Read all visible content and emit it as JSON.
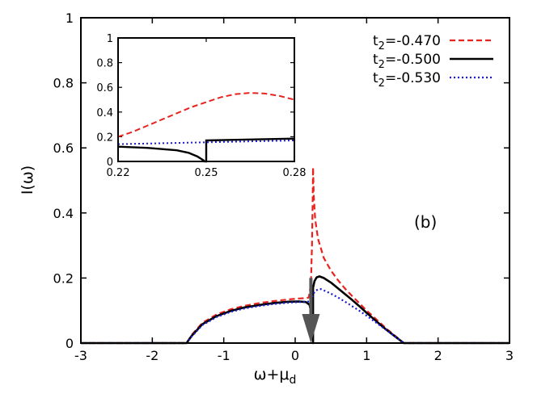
{
  "chart_data": {
    "type": "line",
    "xlabel": "ω+μ",
    "xlabel_sub": "d",
    "ylabel": "I(ω)",
    "xlim": [
      -3,
      3
    ],
    "ylim": [
      0,
      1
    ],
    "xticks": [
      "-3",
      "-2",
      "-1",
      "0",
      "1",
      "2",
      "3"
    ],
    "yticks": [
      "0",
      "0.2",
      "0.4",
      "0.6",
      "0.8",
      "1"
    ],
    "annotation": "(b)",
    "legend_position": "top-right",
    "series": [
      {
        "name": "t2=-0.470",
        "label_main": "t",
        "label_sub": "2",
        "label_rest": "=-0.470",
        "color": "#e8231f",
        "style": "dashed",
        "points": [
          [
            -1.52,
            0
          ],
          [
            -1.45,
            0.025
          ],
          [
            -1.3,
            0.062
          ],
          [
            -1.1,
            0.088
          ],
          [
            -0.9,
            0.104
          ],
          [
            -0.7,
            0.115
          ],
          [
            -0.5,
            0.123
          ],
          [
            -0.3,
            0.129
          ],
          [
            -0.1,
            0.134
          ],
          [
            0.05,
            0.137
          ],
          [
            0.15,
            0.138
          ],
          [
            0.19,
            0.14
          ],
          [
            0.22,
            0.18
          ],
          [
            0.235,
            0.3
          ],
          [
            0.245,
            0.44
          ],
          [
            0.25,
            0.54
          ],
          [
            0.26,
            0.45
          ],
          [
            0.28,
            0.38
          ],
          [
            0.32,
            0.32
          ],
          [
            0.4,
            0.262
          ],
          [
            0.5,
            0.223
          ],
          [
            0.6,
            0.193
          ],
          [
            0.7,
            0.167
          ],
          [
            0.8,
            0.144
          ],
          [
            0.9,
            0.122
          ],
          [
            1.0,
            0.1
          ],
          [
            1.1,
            0.08
          ],
          [
            1.2,
            0.06
          ],
          [
            1.3,
            0.04
          ],
          [
            1.4,
            0.022
          ],
          [
            1.52,
            0
          ]
        ]
      },
      {
        "name": "t2=-0.500",
        "label_main": "t",
        "label_sub": "2",
        "label_rest": "=-0.500",
        "color": "#000000",
        "style": "solid",
        "points": [
          [
            -1.52,
            0
          ],
          [
            -1.45,
            0.022
          ],
          [
            -1.3,
            0.058
          ],
          [
            -1.1,
            0.083
          ],
          [
            -0.9,
            0.099
          ],
          [
            -0.7,
            0.11
          ],
          [
            -0.5,
            0.117
          ],
          [
            -0.3,
            0.123
          ],
          [
            -0.1,
            0.127
          ],
          [
            0.05,
            0.128
          ],
          [
            0.15,
            0.126
          ],
          [
            0.2,
            0.118
          ],
          [
            0.23,
            0.09
          ],
          [
            0.245,
            0.05
          ],
          [
            0.25,
            0
          ],
          [
            0.25,
            0.17
          ],
          [
            0.27,
            0.19
          ],
          [
            0.3,
            0.202
          ],
          [
            0.34,
            0.205
          ],
          [
            0.4,
            0.2
          ],
          [
            0.5,
            0.186
          ],
          [
            0.6,
            0.168
          ],
          [
            0.7,
            0.15
          ],
          [
            0.8,
            0.132
          ],
          [
            0.9,
            0.113
          ],
          [
            1.0,
            0.093
          ],
          [
            1.1,
            0.074
          ],
          [
            1.2,
            0.055
          ],
          [
            1.3,
            0.037
          ],
          [
            1.4,
            0.02
          ],
          [
            1.52,
            0
          ]
        ]
      },
      {
        "name": "t2=-0.530",
        "label_main": "t",
        "label_sub": "2",
        "label_rest": "=-0.530",
        "color": "#1a1ad6",
        "style": "dotted",
        "points": [
          [
            -1.52,
            0
          ],
          [
            -1.45,
            0.02
          ],
          [
            -1.3,
            0.055
          ],
          [
            -1.1,
            0.08
          ],
          [
            -0.9,
            0.096
          ],
          [
            -0.7,
            0.107
          ],
          [
            -0.5,
            0.114
          ],
          [
            -0.3,
            0.12
          ],
          [
            -0.1,
            0.124
          ],
          [
            0.05,
            0.126
          ],
          [
            0.15,
            0.127
          ],
          [
            0.22,
            0.128
          ],
          [
            0.25,
            0.15
          ],
          [
            0.28,
            0.16
          ],
          [
            0.32,
            0.165
          ],
          [
            0.36,
            0.166
          ],
          [
            0.4,
            0.162
          ],
          [
            0.5,
            0.152
          ],
          [
            0.6,
            0.14
          ],
          [
            0.7,
            0.127
          ],
          [
            0.8,
            0.113
          ],
          [
            0.9,
            0.099
          ],
          [
            1.0,
            0.084
          ],
          [
            1.1,
            0.068
          ],
          [
            1.2,
            0.052
          ],
          [
            1.3,
            0.036
          ],
          [
            1.4,
            0.02
          ],
          [
            1.52,
            0
          ]
        ]
      }
    ],
    "arrow": {
      "x": 0.22,
      "y_top": 0.2,
      "y_tip": 0.0,
      "color": "#555555"
    },
    "inset": {
      "xlim": [
        0.22,
        0.28
      ],
      "ylim": [
        0,
        1
      ],
      "xticks": [
        "0.22",
        "0.25",
        "0.28"
      ],
      "yticks": [
        "0",
        "0.2",
        "0.4",
        "0.6",
        "0.8",
        "1"
      ],
      "series": [
        {
          "name": "t2=-0.470",
          "color": "#e8231f",
          "style": "dashed",
          "points": [
            [
              0.22,
              0.2
            ],
            [
              0.225,
              0.24
            ],
            [
              0.23,
              0.29
            ],
            [
              0.235,
              0.34
            ],
            [
              0.24,
              0.39
            ],
            [
              0.245,
              0.44
            ],
            [
              0.25,
              0.48
            ],
            [
              0.255,
              0.52
            ],
            [
              0.26,
              0.545
            ],
            [
              0.265,
              0.555
            ],
            [
              0.27,
              0.55
            ],
            [
              0.275,
              0.53
            ],
            [
              0.28,
              0.5
            ]
          ]
        },
        {
          "name": "t2=-0.500",
          "color": "#000000",
          "style": "solid",
          "points": [
            [
              0.22,
              0.12
            ],
            [
              0.23,
              0.11
            ],
            [
              0.24,
              0.09
            ],
            [
              0.244,
              0.07
            ],
            [
              0.247,
              0.04
            ],
            [
              0.249,
              0.01
            ],
            [
              0.2495,
              0
            ],
            [
              0.25,
              0
            ],
            [
              0.25,
              0.17
            ],
            [
              0.26,
              0.175
            ],
            [
              0.27,
              0.18
            ],
            [
              0.28,
              0.185
            ]
          ]
        },
        {
          "name": "t2=-0.530",
          "color": "#1a1ad6",
          "style": "dotted",
          "points": [
            [
              0.22,
              0.14
            ],
            [
              0.23,
              0.145
            ],
            [
              0.24,
              0.15
            ],
            [
              0.25,
              0.155
            ],
            [
              0.26,
              0.16
            ],
            [
              0.27,
              0.165
            ],
            [
              0.28,
              0.17
            ]
          ]
        }
      ]
    }
  }
}
